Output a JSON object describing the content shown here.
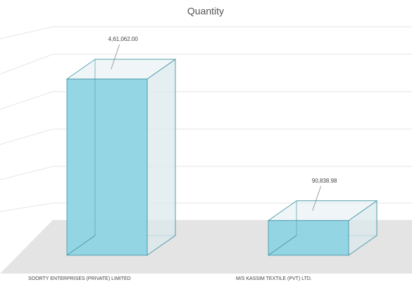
{
  "chart_data": {
    "type": "bar3d",
    "title": "Quantity",
    "categories": [
      "SOORTY ENTERPRISES (PRIVATE) LIMITED",
      "M/S KASSIM TEXTILE (PVT) LTD."
    ],
    "values": [
      461062.0,
      90838.98
    ],
    "value_labels": [
      "4,61,062.00",
      "90,838.98"
    ],
    "color": "#8fd4e4",
    "ylim": [
      0,
      500000
    ]
  }
}
